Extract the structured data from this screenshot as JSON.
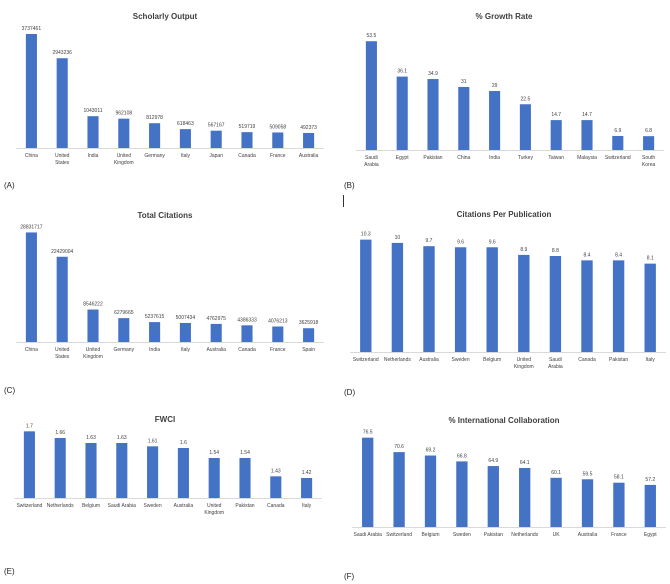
{
  "colors": {
    "bar": "#4472C4",
    "axis": "#d9d9d9",
    "text": "#404040"
  },
  "chart_data": [
    {
      "type": "bar",
      "panel_label": "(A)",
      "title": "Scholarly Output",
      "categories": [
        [
          "China"
        ],
        [
          "United",
          "States"
        ],
        [
          "India"
        ],
        [
          "United",
          "Kingdom"
        ],
        [
          "Germany"
        ],
        [
          "Italy"
        ],
        [
          "Japan"
        ],
        [
          "Canada"
        ],
        [
          "France"
        ],
        [
          "Australia"
        ]
      ],
      "values": [
        3737461,
        2943236,
        1043011,
        962108,
        812978,
        618463,
        567167,
        519719,
        509058,
        492373
      ],
      "value_labels": [
        "3737461",
        "2943236",
        "1043011",
        "962108",
        "812978",
        "618463",
        "567167",
        "519719",
        "509058",
        "492373"
      ],
      "ylim": [
        0,
        4000000
      ]
    },
    {
      "type": "bar",
      "panel_label": "(B)",
      "title": "% Growth Rate",
      "categories": [
        [
          "Saudi",
          "Arabia"
        ],
        [
          "Egypt"
        ],
        [
          "Pakistan"
        ],
        [
          "China"
        ],
        [
          "India"
        ],
        [
          "Turkey"
        ],
        [
          "Taiwan"
        ],
        [
          "Malaysia"
        ],
        [
          "Switzerland"
        ],
        [
          "South",
          "Korea"
        ]
      ],
      "values": [
        53.5,
        36.1,
        34.9,
        31,
        29,
        22.5,
        14.7,
        14.7,
        6.9,
        6.8
      ],
      "value_labels": [
        "53.5",
        "36.1",
        "34.9",
        "31",
        "29",
        "22.5",
        "14.7",
        "14.7",
        "6.9",
        "6.8"
      ],
      "ylim": [
        0,
        60
      ]
    },
    {
      "type": "bar",
      "panel_label": "(C)",
      "title": "Total Citations",
      "categories": [
        [
          "China"
        ],
        [
          "United",
          "States"
        ],
        [
          "United",
          "Kingdom"
        ],
        [
          "Germany"
        ],
        [
          "India"
        ],
        [
          "Italy"
        ],
        [
          "Australia"
        ],
        [
          "Canada"
        ],
        [
          "France"
        ],
        [
          "Spain"
        ]
      ],
      "values": [
        28831717,
        22429004,
        8546222,
        6279665,
        5237615,
        5007434,
        4762975,
        4386333,
        4076213,
        3625918
      ],
      "value_labels": [
        "28831717",
        "22429004",
        "8546222",
        "6279665",
        "5237615",
        "5007434",
        "4762975",
        "4386333",
        "4076213",
        "3625918"
      ],
      "ylim": [
        0,
        30000000
      ]
    },
    {
      "type": "bar",
      "panel_label": "(D)",
      "title": "Citations Per Publication",
      "categories": [
        [
          "Switzerland"
        ],
        [
          "Netherlands"
        ],
        [
          "Australia"
        ],
        [
          "Sweden"
        ],
        [
          "Belgium"
        ],
        [
          "United",
          "Kingdom"
        ],
        [
          "Saudi",
          "Arabia"
        ],
        [
          "Canada"
        ],
        [
          "Pakistan"
        ],
        [
          "Italy"
        ]
      ],
      "values": [
        10.3,
        10,
        9.7,
        9.6,
        9.6,
        8.9,
        8.8,
        8.4,
        8.4,
        8.1
      ],
      "value_labels": [
        "10.3",
        "10",
        "9.7",
        "9.6",
        "9.6",
        "8.9",
        "8.8",
        "8.4",
        "8.4",
        "8.1"
      ],
      "ylim": [
        0,
        11
      ]
    },
    {
      "type": "bar",
      "panel_label": "(E)",
      "title": "FWCI",
      "categories": [
        [
          "Switzerland"
        ],
        [
          "Netherlands"
        ],
        [
          "Belgium"
        ],
        [
          "Saudi Arabia"
        ],
        [
          "Sweden"
        ],
        [
          "Australia"
        ],
        [
          "United",
          "Kingdom"
        ],
        [
          "Pakistan"
        ],
        [
          "Canada"
        ],
        [
          "Italy"
        ]
      ],
      "values": [
        1.7,
        1.66,
        1.63,
        1.63,
        1.61,
        1.6,
        1.54,
        1.54,
        1.43,
        1.42
      ],
      "value_labels": [
        "1.7",
        "1.66",
        "1.63",
        "1.63",
        "1.61",
        "1.6",
        "1.54",
        "1.54",
        "1.43",
        "1.42"
      ],
      "ylim": [
        1.3,
        1.72
      ]
    },
    {
      "type": "bar",
      "panel_label": "(F)",
      "title": "% International Collaboration",
      "categories": [
        [
          "Saudi Arabia"
        ],
        [
          "Switzerland"
        ],
        [
          "Belgium"
        ],
        [
          "Sweden"
        ],
        [
          "Pakistan"
        ],
        [
          "Netherlands"
        ],
        [
          "UK"
        ],
        [
          "Australia"
        ],
        [
          "France"
        ],
        [
          "Egypt"
        ]
      ],
      "values": [
        76.5,
        70.6,
        69.2,
        66.8,
        64.9,
        64.1,
        60.1,
        59.5,
        58.1,
        57.2
      ],
      "value_labels": [
        "76.5",
        "70.6",
        "69.2",
        "66.8",
        "64.9",
        "64.1",
        "60.1",
        "59.5",
        "58.1",
        "57.2"
      ],
      "ylim": [
        40,
        78
      ]
    }
  ]
}
